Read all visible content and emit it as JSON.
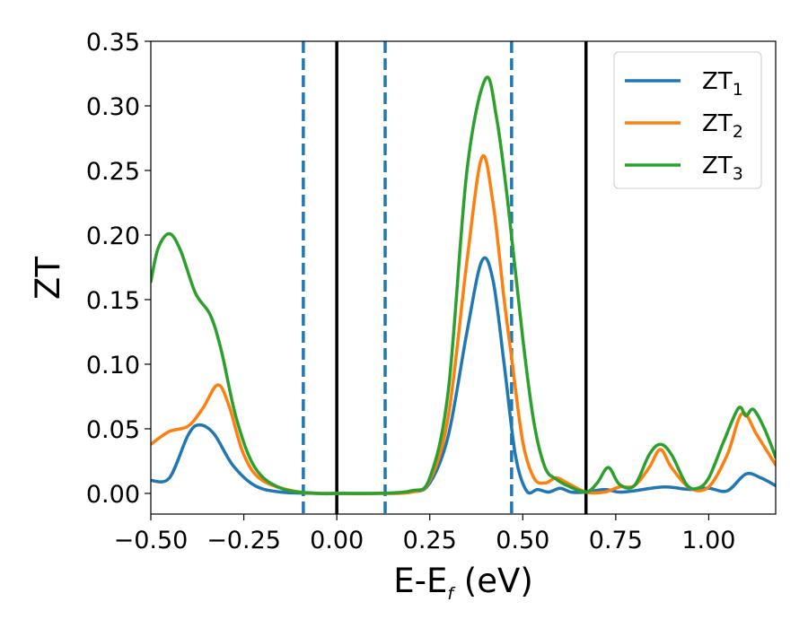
{
  "chart_data": {
    "type": "line",
    "xlabel": "E-E",
    "xlabel_sub": "f",
    "xlabel_unit": " (eV)",
    "ylabel": "ZT",
    "xlim": [
      -0.5,
      1.18
    ],
    "ylim": [
      -0.016,
      0.35
    ],
    "x_ticks": [
      -0.5,
      -0.25,
      0.0,
      0.25,
      0.5,
      0.75,
      1.0
    ],
    "x_tick_labels": [
      "−0.50",
      "−0.25",
      "0.00",
      "0.25",
      "0.50",
      "0.75",
      "1.00"
    ],
    "y_ticks": [
      0.0,
      0.05,
      0.1,
      0.15,
      0.2,
      0.25,
      0.3,
      0.35
    ],
    "y_tick_labels": [
      "0.00",
      "0.05",
      "0.10",
      "0.15",
      "0.20",
      "0.25",
      "0.30",
      "0.35"
    ],
    "legend_position": "top-right",
    "vlines": [
      {
        "x": 0.0,
        "style": "solid",
        "color": "#000000"
      },
      {
        "x": 0.67,
        "style": "solid",
        "color": "#000000"
      },
      {
        "x": -0.09,
        "style": "dashed",
        "color": "#1f77b4"
      },
      {
        "x": 0.13,
        "style": "dashed",
        "color": "#1f77b4"
      },
      {
        "x": 0.47,
        "style": "dashed",
        "color": "#1f77b4"
      }
    ],
    "series": [
      {
        "name": "ZT",
        "sub": "1",
        "color": "#1f77b4",
        "points": [
          [
            -0.5,
            0.01
          ],
          [
            -0.45,
            0.012
          ],
          [
            -0.4,
            0.045
          ],
          [
            -0.37,
            0.053
          ],
          [
            -0.33,
            0.046
          ],
          [
            -0.28,
            0.022
          ],
          [
            -0.22,
            0.006
          ],
          [
            -0.15,
            0.001
          ],
          [
            -0.05,
            0.0
          ],
          [
            0.0,
            0.0
          ],
          [
            0.1,
            0.0
          ],
          [
            0.2,
            0.001
          ],
          [
            0.25,
            0.008
          ],
          [
            0.3,
            0.045
          ],
          [
            0.35,
            0.125
          ],
          [
            0.39,
            0.18
          ],
          [
            0.42,
            0.165
          ],
          [
            0.45,
            0.1
          ],
          [
            0.48,
            0.03
          ],
          [
            0.51,
            0.002
          ],
          [
            0.54,
            0.003
          ],
          [
            0.57,
            0.001
          ],
          [
            0.6,
            0.004
          ],
          [
            0.63,
            0.001
          ],
          [
            0.67,
            0.001
          ],
          [
            0.72,
            0.003
          ],
          [
            0.76,
            0.001
          ],
          [
            0.8,
            0.002
          ],
          [
            0.88,
            0.005
          ],
          [
            0.95,
            0.003
          ],
          [
            1.0,
            0.004
          ],
          [
            1.05,
            0.002
          ],
          [
            1.1,
            0.015
          ],
          [
            1.14,
            0.012
          ],
          [
            1.18,
            0.006
          ]
        ]
      },
      {
        "name": "ZT",
        "sub": "2",
        "color": "#ff7f0e",
        "points": [
          [
            -0.5,
            0.038
          ],
          [
            -0.45,
            0.048
          ],
          [
            -0.4,
            0.052
          ],
          [
            -0.36,
            0.066
          ],
          [
            -0.32,
            0.084
          ],
          [
            -0.29,
            0.068
          ],
          [
            -0.25,
            0.03
          ],
          [
            -0.2,
            0.01
          ],
          [
            -0.1,
            0.001
          ],
          [
            0.0,
            0.0
          ],
          [
            0.1,
            0.0
          ],
          [
            0.2,
            0.001
          ],
          [
            0.25,
            0.01
          ],
          [
            0.3,
            0.06
          ],
          [
            0.35,
            0.18
          ],
          [
            0.39,
            0.26
          ],
          [
            0.42,
            0.225
          ],
          [
            0.45,
            0.15
          ],
          [
            0.47,
            0.105
          ],
          [
            0.5,
            0.04
          ],
          [
            0.53,
            0.012
          ],
          [
            0.56,
            0.008
          ],
          [
            0.59,
            0.012
          ],
          [
            0.62,
            0.008
          ],
          [
            0.67,
            0.001
          ],
          [
            0.72,
            0.001
          ],
          [
            0.76,
            0.005
          ],
          [
            0.8,
            0.006
          ],
          [
            0.84,
            0.02
          ],
          [
            0.87,
            0.034
          ],
          [
            0.9,
            0.02
          ],
          [
            0.95,
            0.004
          ],
          [
            1.0,
            0.005
          ],
          [
            1.05,
            0.03
          ],
          [
            1.09,
            0.062
          ],
          [
            1.13,
            0.045
          ],
          [
            1.18,
            0.022
          ]
        ]
      },
      {
        "name": "ZT",
        "sub": "3",
        "color": "#2ca02c",
        "points": [
          [
            -0.5,
            0.164
          ],
          [
            -0.48,
            0.19
          ],
          [
            -0.45,
            0.201
          ],
          [
            -0.42,
            0.188
          ],
          [
            -0.38,
            0.155
          ],
          [
            -0.34,
            0.138
          ],
          [
            -0.31,
            0.11
          ],
          [
            -0.27,
            0.058
          ],
          [
            -0.22,
            0.02
          ],
          [
            -0.15,
            0.004
          ],
          [
            -0.05,
            0.0
          ],
          [
            0.0,
            0.0
          ],
          [
            0.1,
            0.0
          ],
          [
            0.2,
            0.002
          ],
          [
            0.25,
            0.012
          ],
          [
            0.3,
            0.08
          ],
          [
            0.35,
            0.25
          ],
          [
            0.4,
            0.321
          ],
          [
            0.43,
            0.29
          ],
          [
            0.46,
            0.225
          ],
          [
            0.5,
            0.12
          ],
          [
            0.53,
            0.055
          ],
          [
            0.56,
            0.02
          ],
          [
            0.59,
            0.011
          ],
          [
            0.62,
            0.006
          ],
          [
            0.67,
            0.001
          ],
          [
            0.7,
            0.008
          ],
          [
            0.73,
            0.02
          ],
          [
            0.76,
            0.007
          ],
          [
            0.8,
            0.006
          ],
          [
            0.84,
            0.03
          ],
          [
            0.87,
            0.038
          ],
          [
            0.9,
            0.03
          ],
          [
            0.94,
            0.007
          ],
          [
            0.97,
            0.004
          ],
          [
            1.0,
            0.012
          ],
          [
            1.04,
            0.04
          ],
          [
            1.08,
            0.066
          ],
          [
            1.1,
            0.06
          ],
          [
            1.12,
            0.065
          ],
          [
            1.15,
            0.05
          ],
          [
            1.18,
            0.028
          ]
        ]
      }
    ]
  }
}
